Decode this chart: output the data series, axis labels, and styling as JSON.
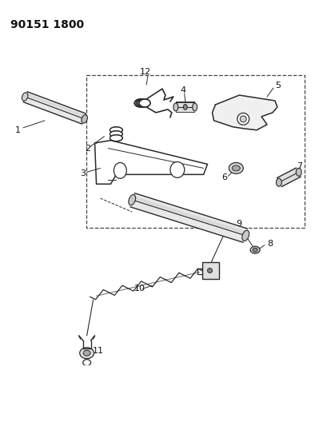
{
  "title": "90151 1800",
  "bg_color": "#ffffff",
  "fig_width": 3.94,
  "fig_height": 5.33,
  "dpi": 100,
  "line_color": "#2a2a2a",
  "dashed_color": "#444444",
  "label_color": "#111111"
}
